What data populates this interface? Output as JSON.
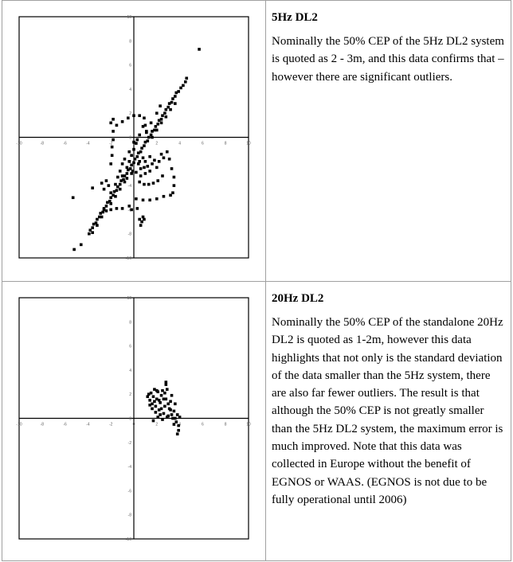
{
  "rows": [
    {
      "heading": "5Hz DL2",
      "body": "Nominally the 50% CEP of the 5Hz DL2 system is quoted as 2 - 3m, and this data confirms that – however there are significant outliers."
    },
    {
      "heading": "20Hz DL2",
      "body": "Nominally the 50% CEP of the standalone 20Hz DL2 is quoted as 1-2m, however this data highlights that not only is the standard deviation of the data smaller than the 5Hz system, there are also far fewer outliers. The result is that although the 50% CEP is not greatly smaller than the 5Hz DL2 system, the maximum error is much improved. Note that this data was collected in Europe without the benefit of EGNOS or WAAS. (EGNOS is not due to be fully operational until 2006)"
    }
  ],
  "chart_data": [
    {
      "type": "scatter",
      "title": "",
      "xlabel": "",
      "ylabel": "",
      "xlim": [
        -10,
        10
      ],
      "ylim": [
        -10,
        10
      ],
      "xticks": [
        -10,
        -8,
        -6,
        -4,
        -2,
        0,
        2,
        4,
        6,
        8,
        10
      ],
      "yticks": [
        -10,
        -8,
        -6,
        -4,
        -2,
        0,
        2,
        4,
        6,
        8,
        10
      ],
      "grid": false,
      "marker_color": "#000000",
      "points": [
        [
          -3.9,
          -8.0
        ],
        [
          -3.8,
          -7.7
        ],
        [
          -3.6,
          -7.5
        ],
        [
          -3.5,
          -7.2
        ],
        [
          -3.3,
          -7.1
        ],
        [
          -3.2,
          -6.8
        ],
        [
          -3.0,
          -6.6
        ],
        [
          -2.9,
          -6.3
        ],
        [
          -2.7,
          -6.2
        ],
        [
          -2.6,
          -5.9
        ],
        [
          -2.4,
          -5.7
        ],
        [
          -2.3,
          -5.4
        ],
        [
          -2.1,
          -5.3
        ],
        [
          -2.0,
          -5.0
        ],
        [
          -1.8,
          -4.8
        ],
        [
          -1.7,
          -4.5
        ],
        [
          -1.5,
          -4.4
        ],
        [
          -1.4,
          -4.1
        ],
        [
          -1.2,
          -3.9
        ],
        [
          -1.1,
          -3.6
        ],
        [
          -0.9,
          -3.5
        ],
        [
          -0.8,
          -3.2
        ],
        [
          -0.6,
          -3.0
        ],
        [
          -0.5,
          -2.7
        ],
        [
          -0.3,
          -2.6
        ],
        [
          -0.2,
          -2.3
        ],
        [
          0.0,
          -2.1
        ],
        [
          0.1,
          -1.8
        ],
        [
          0.3,
          -1.6
        ],
        [
          0.4,
          -1.3
        ],
        [
          0.6,
          -1.2
        ],
        [
          0.7,
          -0.9
        ],
        [
          0.9,
          -0.7
        ],
        [
          1.0,
          -0.4
        ],
        [
          1.2,
          -0.3
        ],
        [
          1.3,
          0.0
        ],
        [
          1.5,
          0.2
        ],
        [
          1.6,
          0.5
        ],
        [
          1.8,
          0.6
        ],
        [
          1.9,
          0.9
        ],
        [
          2.1,
          1.1
        ],
        [
          2.2,
          1.4
        ],
        [
          2.4,
          1.5
        ],
        [
          2.5,
          1.8
        ],
        [
          2.7,
          2.0
        ],
        [
          2.8,
          2.3
        ],
        [
          3.0,
          2.5
        ],
        [
          3.1,
          2.8
        ],
        [
          3.3,
          2.9
        ],
        [
          3.4,
          3.2
        ],
        [
          3.6,
          3.4
        ],
        [
          3.7,
          3.7
        ],
        [
          3.9,
          3.8
        ],
        [
          4.1,
          4.1
        ],
        [
          4.3,
          4.3
        ],
        [
          4.5,
          4.6
        ],
        [
          4.6,
          4.9
        ],
        [
          -3.6,
          -7.9
        ],
        [
          -3.2,
          -7.3
        ],
        [
          -2.8,
          -6.6
        ],
        [
          -2.4,
          -6.1
        ],
        [
          -2.0,
          -5.5
        ],
        [
          -1.6,
          -4.9
        ],
        [
          -1.2,
          -4.3
        ],
        [
          -0.8,
          -3.7
        ],
        [
          1.6,
          0.0
        ],
        [
          2.0,
          0.6
        ],
        [
          2.4,
          1.2
        ],
        [
          2.8,
          1.7
        ],
        [
          3.2,
          2.3
        ],
        [
          3.6,
          2.8
        ],
        [
          2.3,
          2.6
        ],
        [
          2.0,
          2.0
        ],
        [
          1.5,
          1.2
        ],
        [
          1.1,
          0.5
        ],
        [
          0.8,
          0.9
        ],
        [
          0.5,
          0.2
        ],
        [
          -1.0,
          -2.2
        ],
        [
          -0.8,
          -1.8
        ],
        [
          -0.6,
          -2.5
        ],
        [
          -0.4,
          -2.0
        ],
        [
          -0.2,
          -1.5
        ],
        [
          0.0,
          -1.0
        ],
        [
          0.2,
          -0.5
        ],
        [
          0.4,
          -2.2
        ],
        [
          0.6,
          -2.6
        ],
        [
          0.8,
          -1.7
        ],
        [
          1.0,
          -2.0
        ],
        [
          1.2,
          -2.4
        ],
        [
          1.4,
          -1.6
        ],
        [
          1.6,
          -2.2
        ],
        [
          1.8,
          -1.9
        ],
        [
          2.0,
          -2.5
        ],
        [
          2.2,
          -2.0
        ],
        [
          2.4,
          -1.4
        ],
        [
          2.6,
          -1.7
        ],
        [
          -1.2,
          -2.8
        ],
        [
          -1.0,
          -3.2
        ],
        [
          -0.6,
          -3.4
        ],
        [
          -0.2,
          -3.0
        ],
        [
          0.2,
          -2.9
        ],
        [
          0.6,
          -3.2
        ],
        [
          1.0,
          -3.0
        ],
        [
          1.4,
          -2.8
        ],
        [
          -1.4,
          -3.3
        ],
        [
          -0.4,
          -1.2
        ],
        [
          0.3,
          -0.2
        ],
        [
          0.0,
          -0.4
        ],
        [
          -0.1,
          -2.8
        ],
        [
          0.5,
          -2.0
        ],
        [
          0.9,
          -2.5
        ],
        [
          -1.6,
          -3.9
        ],
        [
          -2.2,
          -4.0
        ],
        [
          -2.6,
          -4.3
        ],
        [
          -2.0,
          -4.6
        ],
        [
          -2.4,
          -3.6
        ],
        [
          -2.8,
          -3.8
        ],
        [
          -2.0,
          1.2
        ],
        [
          -1.8,
          1.5
        ],
        [
          -1.5,
          1.0
        ],
        [
          -1.0,
          1.3
        ],
        [
          -0.5,
          1.6
        ],
        [
          0.0,
          1.8
        ],
        [
          0.5,
          1.8
        ],
        [
          0.9,
          1.6
        ],
        [
          1.0,
          1.0
        ],
        [
          1.1,
          0.4
        ],
        [
          -1.8,
          0.5
        ],
        [
          -1.8,
          -0.2
        ],
        [
          -1.9,
          -0.8
        ],
        [
          -1.9,
          -1.5
        ],
        [
          -2.0,
          -2.2
        ],
        [
          2.9,
          -1.2
        ],
        [
          3.1,
          -1.8
        ],
        [
          3.3,
          -2.6
        ],
        [
          3.5,
          -3.3
        ],
        [
          3.5,
          -4.0
        ],
        [
          3.4,
          -4.6
        ],
        [
          3.2,
          -4.8
        ],
        [
          2.6,
          -4.9
        ],
        [
          2.0,
          -5.1
        ],
        [
          1.4,
          -5.2
        ],
        [
          0.8,
          -5.2
        ],
        [
          0.2,
          -5.1
        ],
        [
          0.5,
          -3.7
        ],
        [
          0.9,
          -3.9
        ],
        [
          1.3,
          -3.9
        ],
        [
          1.7,
          -3.8
        ],
        [
          2.1,
          -3.6
        ],
        [
          2.5,
          -3.2
        ],
        [
          -0.4,
          -5.7
        ],
        [
          -1.0,
          -5.9
        ],
        [
          -1.5,
          -5.9
        ],
        [
          -2.0,
          -6.0
        ],
        [
          -2.6,
          -6.0
        ],
        [
          -0.2,
          -6.0
        ],
        [
          0.3,
          -5.9
        ],
        [
          0.5,
          -6.8
        ],
        [
          0.7,
          -7.0
        ],
        [
          0.9,
          -6.8
        ],
        [
          0.6,
          -7.3
        ],
        [
          0.8,
          -6.6
        ],
        [
          5.7,
          7.3
        ],
        [
          -5.3,
          -5.0
        ],
        [
          -3.6,
          -4.2
        ],
        [
          -5.2,
          -9.3
        ],
        [
          -4.6,
          -8.9
        ]
      ]
    },
    {
      "type": "scatter",
      "title": "",
      "xlabel": "",
      "ylabel": "",
      "xlim": [
        -10,
        10
      ],
      "ylim": [
        -10,
        10
      ],
      "xticks": [
        -10,
        -8,
        -6,
        -4,
        -2,
        0,
        2,
        4,
        6,
        8,
        10
      ],
      "yticks": [
        -10,
        -8,
        -6,
        -4,
        -2,
        0,
        2,
        4,
        6,
        8,
        10
      ],
      "grid": false,
      "marker_color": "#000000",
      "points": [
        [
          1.2,
          1.8
        ],
        [
          1.3,
          2.0
        ],
        [
          1.4,
          1.5
        ],
        [
          1.5,
          2.1
        ],
        [
          1.6,
          1.2
        ],
        [
          1.7,
          1.8
        ],
        [
          1.8,
          2.4
        ],
        [
          1.9,
          1.0
        ],
        [
          2.0,
          1.6
        ],
        [
          2.1,
          2.2
        ],
        [
          2.2,
          0.7
        ],
        [
          2.3,
          1.3
        ],
        [
          2.4,
          1.9
        ],
        [
          2.5,
          2.3
        ],
        [
          2.6,
          0.4
        ],
        [
          2.7,
          1.0
        ],
        [
          2.8,
          1.6
        ],
        [
          2.9,
          2.4
        ],
        [
          3.0,
          0.2
        ],
        [
          3.1,
          0.8
        ],
        [
          3.2,
          1.4
        ],
        [
          3.3,
          1.9
        ],
        [
          3.4,
          0.0
        ],
        [
          3.5,
          0.6
        ],
        [
          3.6,
          1.2
        ],
        [
          3.7,
          -0.3
        ],
        [
          3.8,
          0.3
        ],
        [
          3.9,
          -0.6
        ],
        [
          4.0,
          0.1
        ],
        [
          3.9,
          -1.0
        ],
        [
          3.8,
          -1.3
        ],
        [
          3.5,
          -0.5
        ],
        [
          3.3,
          0.3
        ],
        [
          2.9,
          0.1
        ],
        [
          2.5,
          -0.1
        ],
        [
          2.1,
          0.1
        ],
        [
          1.7,
          -0.2
        ],
        [
          1.9,
          0.5
        ],
        [
          1.6,
          0.8
        ],
        [
          2.3,
          0.3
        ],
        [
          2.8,
          3.0
        ],
        [
          2.8,
          2.8
        ],
        [
          1.4,
          1.1
        ],
        [
          2.6,
          1.6
        ],
        [
          3.0,
          1.2
        ],
        [
          2.2,
          1.5
        ],
        [
          1.8,
          1.4
        ],
        [
          2.4,
          0.8
        ],
        [
          3.2,
          0.7
        ],
        [
          3.6,
          0.0
        ],
        [
          2.0,
          2.3
        ],
        [
          2.7,
          2.1
        ]
      ]
    }
  ]
}
